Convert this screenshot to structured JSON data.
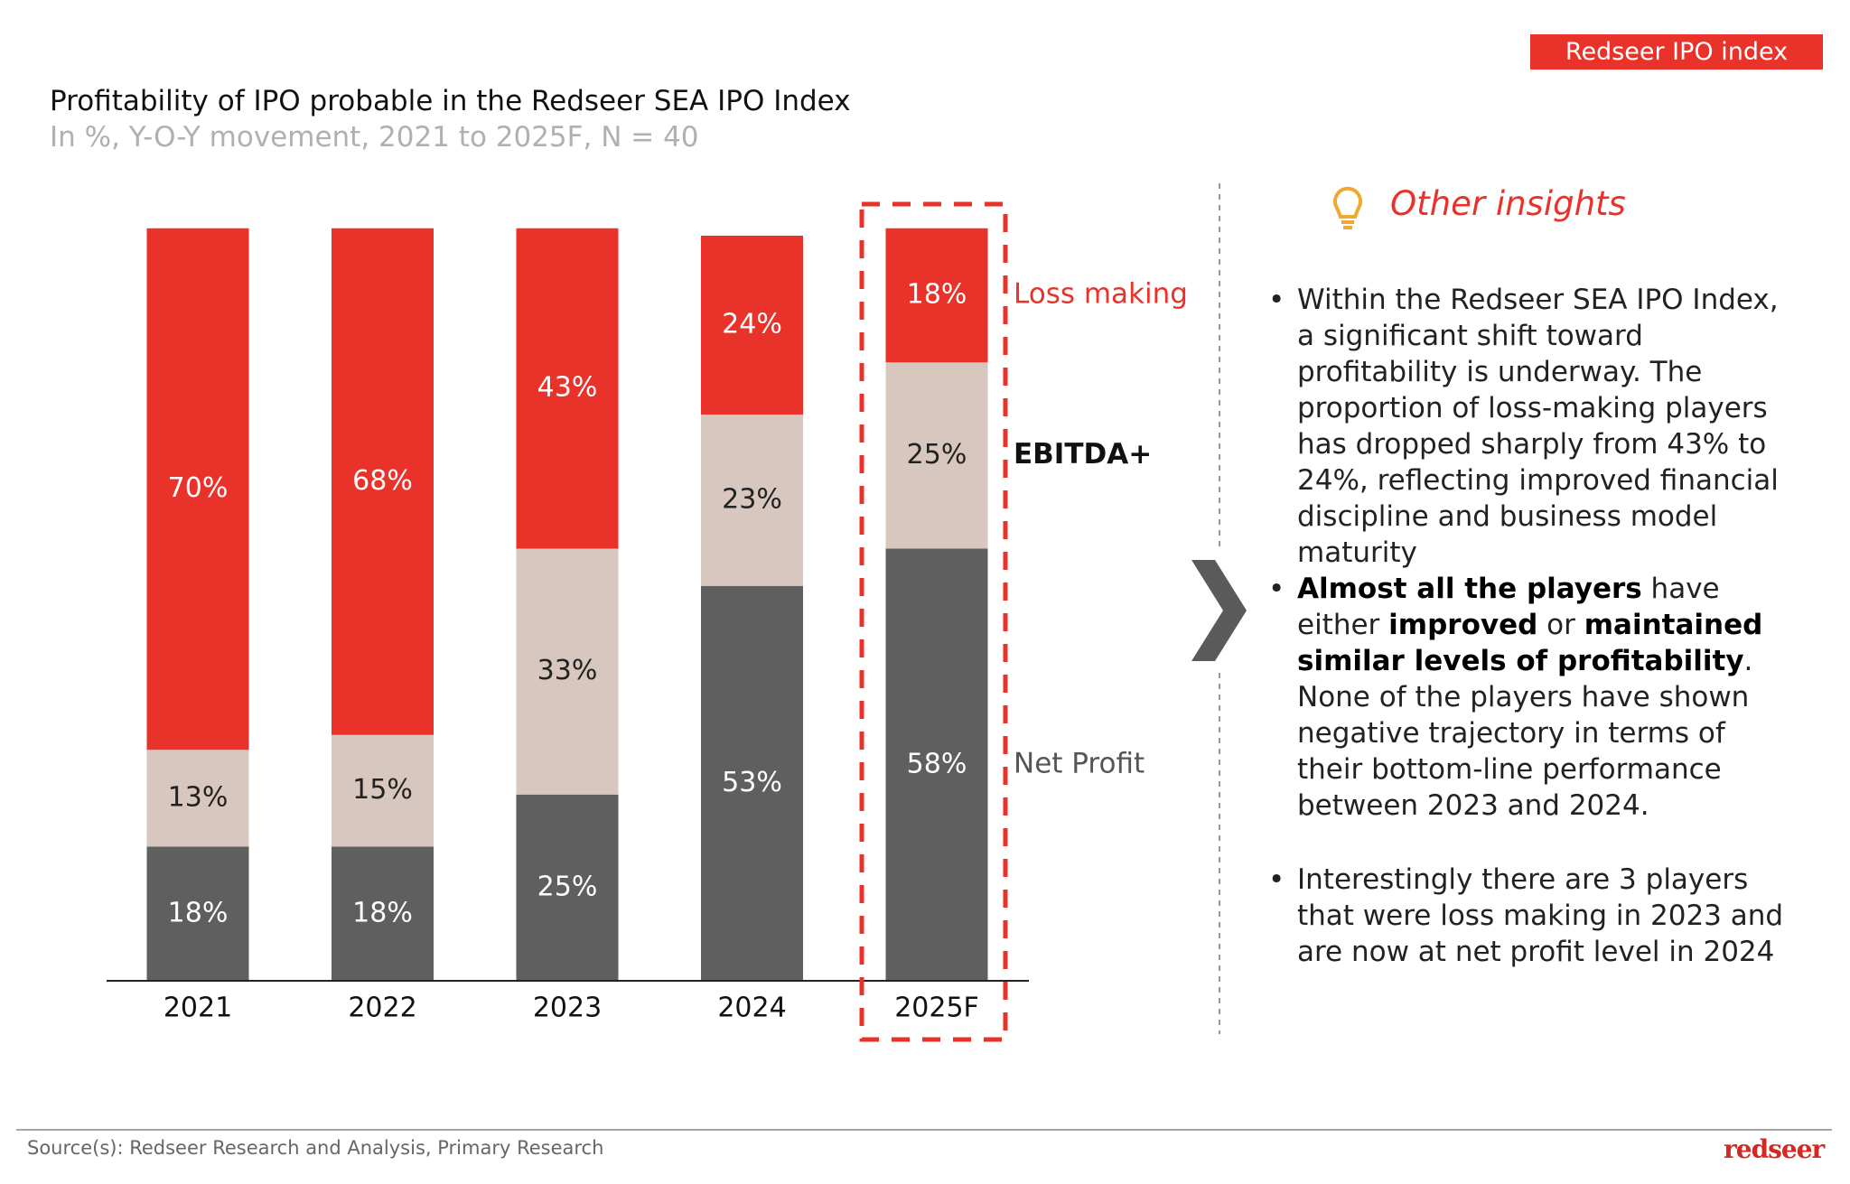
{
  "header": {
    "tag": "Redseer IPO index",
    "title": "Profitability of IPO probable in the Redseer SEA IPO Index",
    "subtitle": "In %, Y-O-Y movement, 2021 to 2025F, N = 40"
  },
  "chart_data": {
    "type": "stacked_bar",
    "categories": [
      "2021",
      "2022",
      "2023",
      "2024",
      "2025F"
    ],
    "series": [
      {
        "name": "Net Profit",
        "color": "#5f5f5f",
        "values": [
          18,
          18,
          25,
          53,
          58
        ],
        "value_labels": [
          "18%",
          "18%",
          "25%",
          "53%",
          "58%"
        ]
      },
      {
        "name": "EBITDA+",
        "color": "#d8c7be",
        "values": [
          13,
          15,
          33,
          23,
          25
        ],
        "value_labels": [
          "13%",
          "15%",
          "33%",
          "23%",
          "25%"
        ]
      },
      {
        "name": "Loss making",
        "color": "#e8322a",
        "values": [
          70,
          68,
          43,
          24,
          18
        ],
        "value_labels": [
          "70%",
          "68%",
          "43%",
          "24%",
          "18%"
        ]
      }
    ],
    "ylim": [
      0,
      100
    ],
    "highlight_index": 4
  },
  "insights": {
    "title": "Other insights",
    "bullets": [
      {
        "runs": [
          {
            "text": "Within the Redseer SEA IPO Index, a significant shift toward profitability is underway. The proportion of loss-making players has dropped sharply from 43% to 24%, reflecting improved financial discipline and business model maturity",
            "bold": false
          }
        ]
      },
      {
        "runs": [
          {
            "text": "Almost all the players",
            "bold": true
          },
          {
            "text": " have either ",
            "bold": false
          },
          {
            "text": "improved",
            "bold": true
          },
          {
            "text": " or ",
            "bold": false
          },
          {
            "text": "maintained similar levels of profitability",
            "bold": true
          },
          {
            "text": ". None of the players have shown negative trajectory in terms of their bottom-line performance between 2023 and 2024.",
            "bold": false
          }
        ]
      },
      {
        "runs": [
          {
            "text": "Interestingly there are 3 players that were loss making in 2023 and are now at net profit level in 2024",
            "bold": false
          }
        ]
      }
    ]
  },
  "footer": {
    "source": "Source(s): Redseer Research and Analysis, Primary Research",
    "logo": "redseer"
  }
}
